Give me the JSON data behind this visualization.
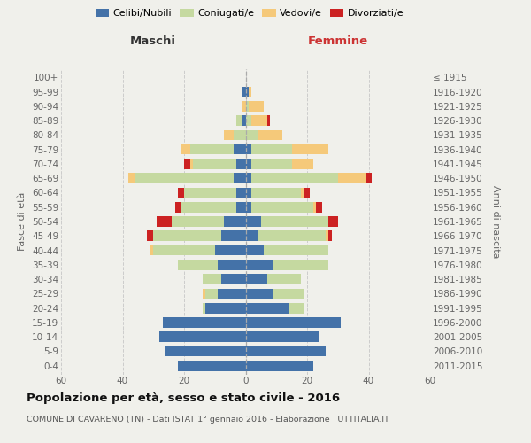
{
  "age_groups": [
    "0-4",
    "5-9",
    "10-14",
    "15-19",
    "20-24",
    "25-29",
    "30-34",
    "35-39",
    "40-44",
    "45-49",
    "50-54",
    "55-59",
    "60-64",
    "65-69",
    "70-74",
    "75-79",
    "80-84",
    "85-89",
    "90-94",
    "95-99",
    "100+"
  ],
  "birth_years": [
    "2011-2015",
    "2006-2010",
    "2001-2005",
    "1996-2000",
    "1991-1995",
    "1986-1990",
    "1981-1985",
    "1976-1980",
    "1971-1975",
    "1966-1970",
    "1961-1965",
    "1956-1960",
    "1951-1955",
    "1946-1950",
    "1941-1945",
    "1936-1940",
    "1931-1935",
    "1926-1930",
    "1921-1925",
    "1916-1920",
    "≤ 1915"
  ],
  "maschi": {
    "celibi": [
      22,
      26,
      28,
      27,
      13,
      9,
      8,
      9,
      10,
      8,
      7,
      3,
      3,
      4,
      3,
      4,
      0,
      1,
      0,
      1,
      0
    ],
    "coniugati": [
      0,
      0,
      0,
      0,
      1,
      4,
      6,
      13,
      20,
      22,
      17,
      18,
      17,
      32,
      14,
      14,
      4,
      2,
      0,
      0,
      0
    ],
    "vedovi": [
      0,
      0,
      0,
      0,
      0,
      1,
      0,
      0,
      1,
      0,
      0,
      0,
      0,
      2,
      1,
      3,
      3,
      0,
      1,
      0,
      0
    ],
    "divorziati": [
      0,
      0,
      0,
      0,
      0,
      0,
      0,
      0,
      0,
      2,
      5,
      2,
      2,
      0,
      2,
      0,
      0,
      0,
      0,
      0,
      0
    ]
  },
  "femmine": {
    "nubili": [
      22,
      26,
      24,
      31,
      14,
      9,
      7,
      9,
      6,
      4,
      5,
      2,
      2,
      2,
      2,
      2,
      0,
      0,
      0,
      1,
      0
    ],
    "coniugate": [
      0,
      0,
      0,
      0,
      5,
      10,
      11,
      18,
      21,
      22,
      22,
      20,
      16,
      28,
      13,
      13,
      4,
      2,
      1,
      0,
      0
    ],
    "vedove": [
      0,
      0,
      0,
      0,
      0,
      0,
      0,
      0,
      0,
      1,
      0,
      1,
      1,
      9,
      7,
      12,
      8,
      5,
      5,
      1,
      0
    ],
    "divorziate": [
      0,
      0,
      0,
      0,
      0,
      0,
      0,
      0,
      0,
      1,
      3,
      2,
      2,
      2,
      0,
      0,
      0,
      1,
      0,
      0,
      0
    ]
  },
  "colors": {
    "celibi": "#4472a8",
    "coniugati": "#c5d9a0",
    "vedovi": "#f5c97a",
    "divorziati": "#cc2222"
  },
  "legend_labels": [
    "Celibi/Nubili",
    "Coniugati/e",
    "Vedovi/e",
    "Divorziati/e"
  ],
  "xlim": 60,
  "bg_color": "#f0f0eb",
  "grid_color": "#cccccc",
  "xlabel_left": "Maschi",
  "xlabel_right": "Femmine",
  "ylabel_left": "Fasce di età",
  "ylabel_right": "Anni di nascita",
  "title": "Popolazione per età, sesso e stato civile - 2016",
  "subtitle": "COMUNE DI CAVARENO (TN) - Dati ISTAT 1° gennaio 2016 - Elaborazione TUTTITALIA.IT"
}
